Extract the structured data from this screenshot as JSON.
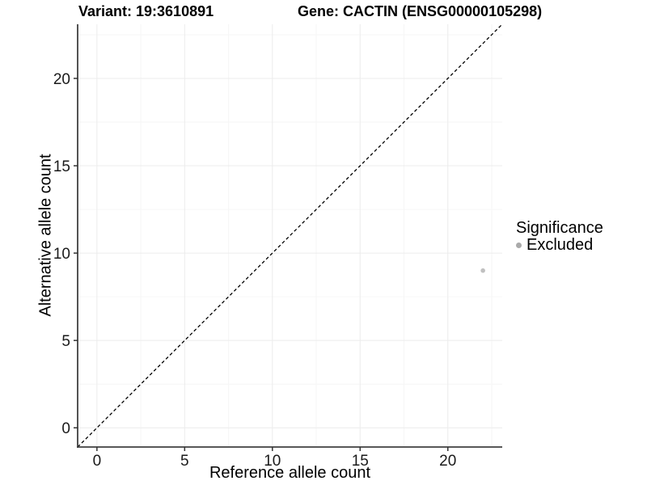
{
  "chart_data": {
    "type": "scatter",
    "title_left": "Variant: 19:3610891",
    "title_right": "Gene: CACTIN (ENSG00000105298)",
    "xlabel": "Reference allele count",
    "ylabel": "Alternative allele count",
    "xlim": [
      -1.1,
      23.1
    ],
    "ylim": [
      -1.1,
      23.1
    ],
    "x_ticks": [
      0,
      5,
      10,
      15,
      20
    ],
    "y_ticks": [
      0,
      5,
      10,
      15,
      20
    ],
    "minor_gridlines": [
      2.5,
      7.5,
      12.5,
      17.5,
      22.5
    ],
    "grid": true,
    "points": [
      {
        "x": 22,
        "y": 9,
        "series": "Excluded",
        "color": "#c0c0c0",
        "radius": 2.8
      }
    ],
    "reference_line": {
      "kind": "identity y=x",
      "style": "dashed",
      "color": "#000000"
    },
    "legend": {
      "position": "right",
      "title": "Significance",
      "entries": [
        {
          "label": "Excluded",
          "color": "#aaaaaa"
        }
      ]
    },
    "style": {
      "axis_line_color": "#404040",
      "tick_color": "#333333",
      "tick_label_color": "#1a1a1a",
      "major_grid_color": "#ececec",
      "minor_grid_color": "#f6f6f6",
      "background": "#ffffff"
    }
  }
}
